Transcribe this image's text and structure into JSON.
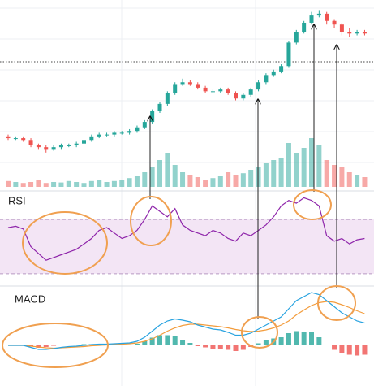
{
  "chart_data": [
    {
      "type": "candlestick",
      "open": [
        28,
        27,
        27,
        26,
        23,
        22,
        21,
        22,
        23,
        23,
        24,
        26,
        28,
        29,
        29,
        30,
        30,
        31,
        33,
        36,
        42,
        46,
        52,
        57,
        58,
        57,
        55,
        53,
        53,
        54,
        52,
        49,
        51,
        54,
        58,
        62,
        64,
        67,
        80,
        86,
        91,
        95,
        96,
        92,
        90,
        86,
        85,
        86
      ],
      "high": [
        29,
        28,
        28,
        27,
        24,
        23,
        23,
        24,
        24,
        25,
        27,
        29,
        30,
        30,
        31,
        31,
        32,
        34,
        37,
        43,
        47,
        53,
        58,
        60,
        59,
        58,
        56,
        54,
        55,
        55,
        53,
        52,
        55,
        59,
        63,
        65,
        68,
        81,
        87,
        92,
        97,
        98,
        97,
        93,
        91,
        88,
        87,
        87
      ],
      "low": [
        26,
        26,
        25,
        22,
        21,
        19,
        20,
        21,
        22,
        22,
        23,
        25,
        27,
        28,
        28,
        29,
        29,
        30,
        32,
        35,
        41,
        45,
        51,
        56,
        56,
        54,
        52,
        52,
        52,
        51,
        48,
        48,
        50,
        53,
        57,
        61,
        63,
        66,
        79,
        85,
        90,
        94,
        90,
        88,
        84,
        83,
        84,
        84
      ],
      "close": [
        27,
        27,
        26,
        23,
        22,
        21,
        22,
        23,
        23,
        24,
        26,
        28,
        29,
        29,
        30,
        30,
        31,
        33,
        36,
        42,
        46,
        52,
        57,
        58,
        57,
        55,
        53,
        53,
        54,
        52,
        49,
        51,
        54,
        58,
        62,
        64,
        67,
        80,
        86,
        91,
        95,
        96,
        92,
        90,
        86,
        85,
        86,
        85
      ],
      "volume": [
        12,
        10,
        8,
        10,
        14,
        8,
        10,
        9,
        12,
        10,
        8,
        12,
        14,
        10,
        12,
        15,
        18,
        22,
        30,
        40,
        55,
        70,
        45,
        30,
        25,
        20,
        15,
        18,
        22,
        30,
        25,
        28,
        35,
        40,
        50,
        55,
        60,
        90,
        70,
        80,
        100,
        85,
        55,
        45,
        40,
        30,
        25,
        20
      ],
      "ylim": [
        0,
        100
      ],
      "volume_lim": [
        0,
        100
      ],
      "up_color": "#26a69a",
      "down_color": "#ef5350",
      "grid": true
    },
    {
      "type": "line",
      "title": "RSI",
      "values": [
        64,
        65,
        63,
        50,
        45,
        40,
        42,
        44,
        46,
        48,
        52,
        56,
        62,
        64,
        60,
        56,
        58,
        62,
        70,
        80,
        76,
        72,
        78,
        66,
        62,
        60,
        58,
        62,
        60,
        56,
        54,
        60,
        58,
        62,
        66,
        72,
        80,
        84,
        82,
        86,
        84,
        80,
        58,
        54,
        56,
        52,
        55,
        56
      ],
      "ylim": [
        0,
        100
      ],
      "band": [
        30,
        70
      ],
      "color": "#8e24aa",
      "band_color": "#f3e5f5"
    },
    {
      "type": "macd",
      "title": "MACD",
      "macd": [
        0,
        0,
        0,
        -0.5,
        -1,
        -1,
        -0.8,
        -0.5,
        -0.3,
        -0.2,
        0,
        0.2,
        0.3,
        0.3,
        0.4,
        0.5,
        0.6,
        1,
        2,
        3.5,
        5,
        6,
        6.5,
        6.2,
        5.8,
        5,
        4.5,
        4,
        3.8,
        3.2,
        2.5,
        2.5,
        3,
        4,
        5,
        6,
        7,
        9,
        11,
        12,
        13,
        12.5,
        11,
        9.5,
        8,
        7,
        6,
        5.5
      ],
      "signal": [
        0,
        0,
        0,
        -0.2,
        -0.4,
        -0.6,
        -0.7,
        -0.6,
        -0.5,
        -0.4,
        -0.3,
        -0.1,
        0,
        0.1,
        0.2,
        0.3,
        0.4,
        0.6,
        1,
        1.6,
        2.5,
        3.5,
        4.3,
        4.9,
        5.2,
        5.2,
        5,
        4.8,
        4.6,
        4.3,
        3.9,
        3.6,
        3.4,
        3.5,
        3.8,
        4.3,
        5,
        6,
        7.5,
        8.7,
        9.8,
        10.5,
        10.8,
        10.6,
        10,
        9.3,
        8.5,
        7.8
      ],
      "histogram": [
        0,
        0,
        0,
        -0.3,
        -0.6,
        -0.4,
        -0.1,
        0.1,
        0.2,
        0.2,
        0.3,
        0.3,
        0.3,
        0.2,
        0.2,
        0.2,
        0.2,
        0.4,
        1,
        1.9,
        2.5,
        2.5,
        2.2,
        1.3,
        0.6,
        -0.2,
        -0.5,
        -0.8,
        -0.8,
        -1.1,
        -1.4,
        -1.1,
        -0.4,
        0.5,
        1.2,
        1.7,
        2,
        3,
        3.5,
        3.3,
        3.2,
        2,
        0.2,
        -1.1,
        -2,
        -2.3,
        -2.5,
        -2.3
      ],
      "ylim": [
        -10,
        13
      ],
      "macd_color": "#29a3e0",
      "signal_color": "#f39c3c",
      "up_color": "#26a69a",
      "down_color": "#ef5350"
    }
  ]
}
